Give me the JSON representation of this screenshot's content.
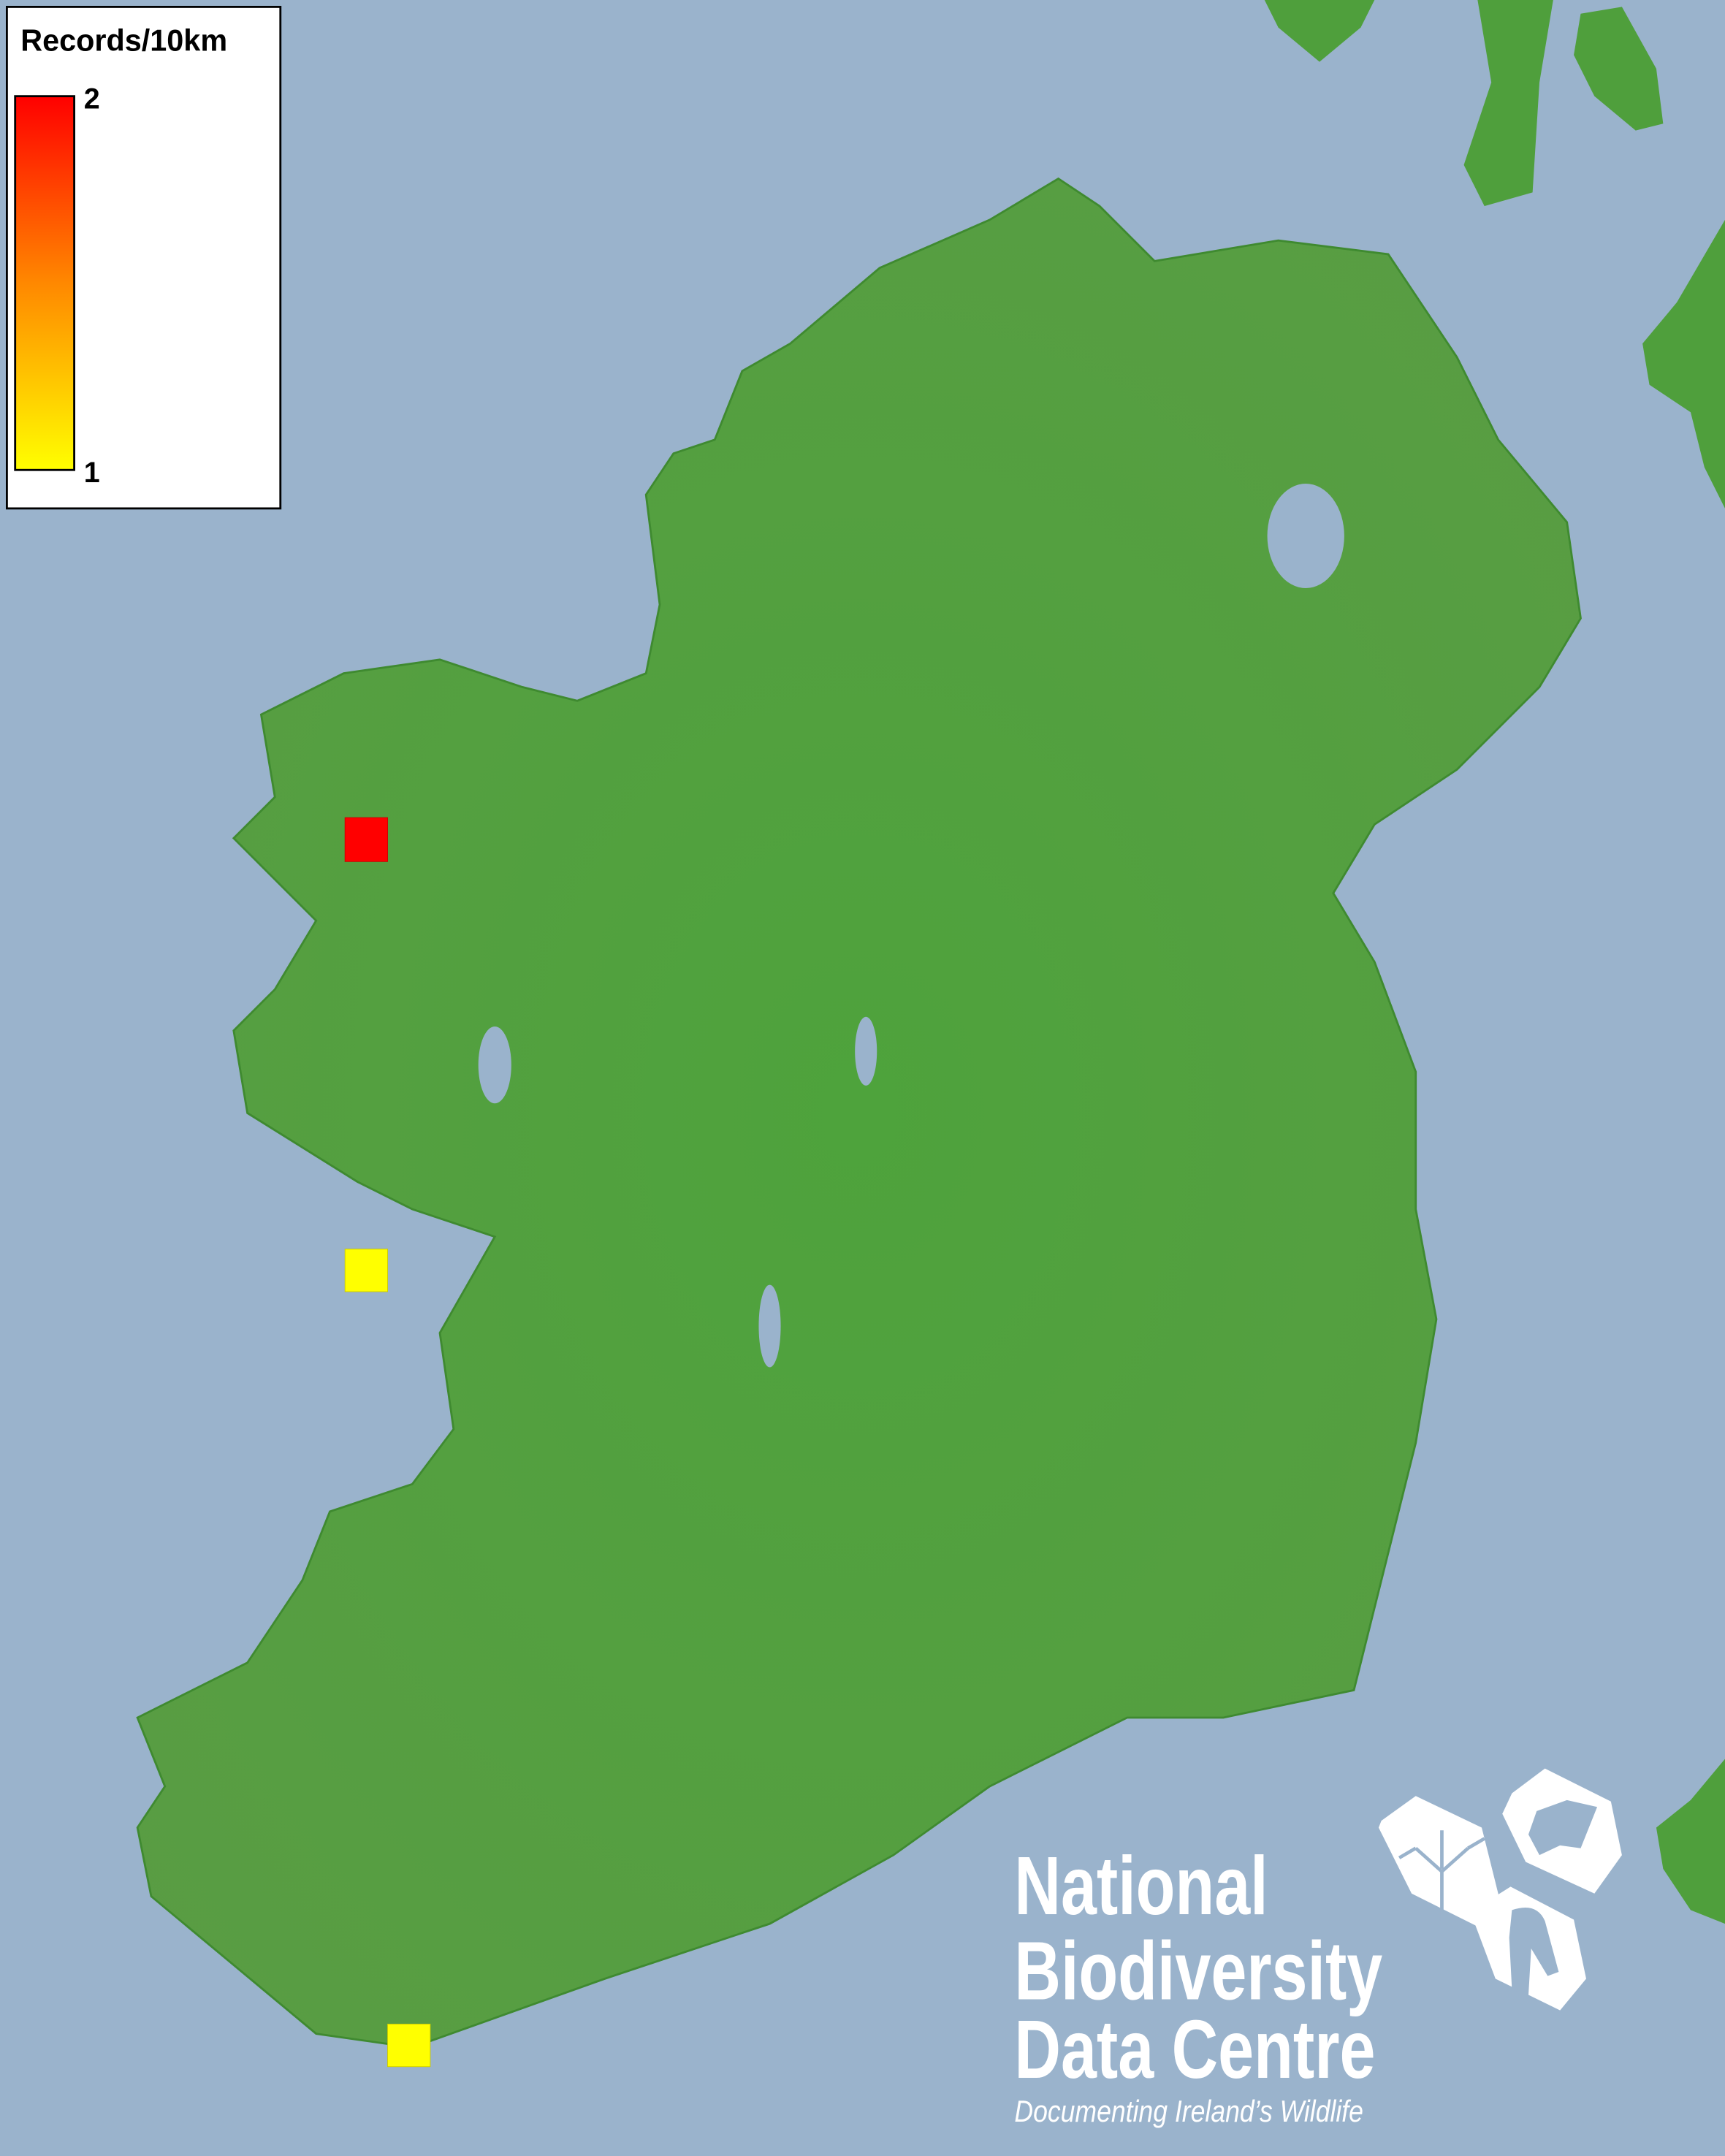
{
  "map": {
    "sea_color": "#9ab3cc",
    "land_color": "#4f9f3c",
    "records": [
      {
        "grid_square": "western Mayo coast",
        "records": 2,
        "color": "#ff0000"
      },
      {
        "grid_square": "Aran Islands, Galway Bay",
        "records": 1,
        "color": "#ffff00"
      },
      {
        "grid_square": "south-west Cork coast",
        "records": 1,
        "color": "#ffff00"
      }
    ]
  },
  "legend": {
    "title": "Records/10km",
    "max_label": "2",
    "min_label": "1",
    "max_color": "#ff0000",
    "mid_color": "#ff8800",
    "min_color": "#ffff00"
  },
  "logo": {
    "line1": "National",
    "line2": "Biodiversity",
    "line3": "Data Centre",
    "tagline": "Documenting Ireland’s Wildlife",
    "icons": [
      "tree-icon",
      "butterfly-icon",
      "seahorse-icon"
    ]
  }
}
